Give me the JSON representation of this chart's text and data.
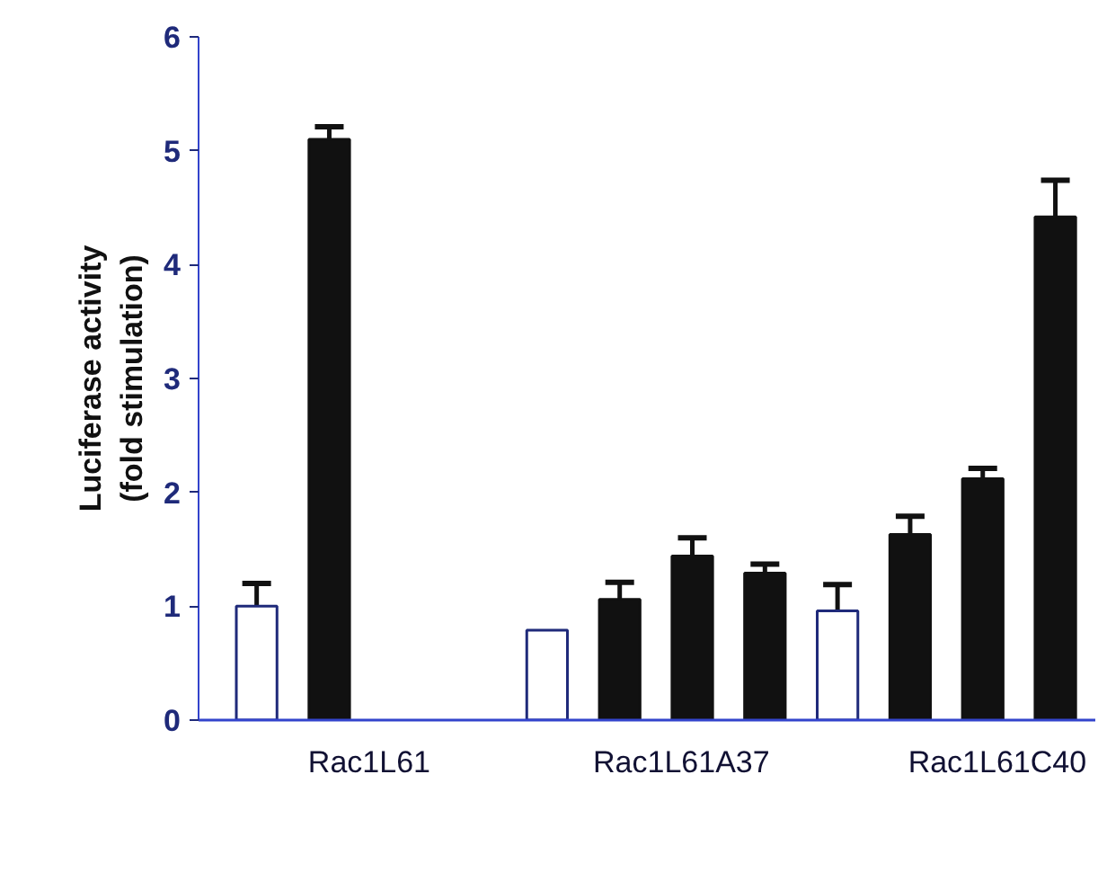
{
  "chart_data": {
    "type": "bar",
    "ylabel": "Luciferase activity\n(fold stimulation)",
    "categories": [
      null,
      null,
      null,
      null,
      null,
      null,
      null,
      null,
      null,
      null,
      null,
      null
    ],
    "values": [
      1.0,
      5.1,
      null,
      null,
      0.79,
      1.06,
      1.44,
      1.29,
      0.96,
      1.63,
      2.12,
      4.42
    ],
    "colors": [
      "#ffffff",
      "#111111",
      "#111111",
      "#111111",
      "#ffffff",
      "#111111",
      "#111111",
      "#111111",
      "#ffffff",
      "#111111",
      "#111111",
      "#111111"
    ],
    "errors": [
      [
        1.0,
        1.2
      ],
      [
        5.1,
        5.21
      ],
      null,
      null,
      null,
      [
        1.06,
        1.21
      ],
      [
        1.44,
        1.6
      ],
      [
        1.29,
        1.37
      ],
      [
        0.96,
        1.19
      ],
      [
        1.63,
        1.79
      ],
      [
        2.12,
        2.21
      ],
      [
        4.42,
        4.74
      ]
    ],
    "ylim": [
      0,
      6
    ],
    "yticks": [
      0,
      1,
      2,
      3,
      4,
      5,
      6
    ],
    "annotations": [
      "Rac1L61",
      "Rac1L61A37",
      "Rac1L61C40"
    ],
    "grid": false
  }
}
